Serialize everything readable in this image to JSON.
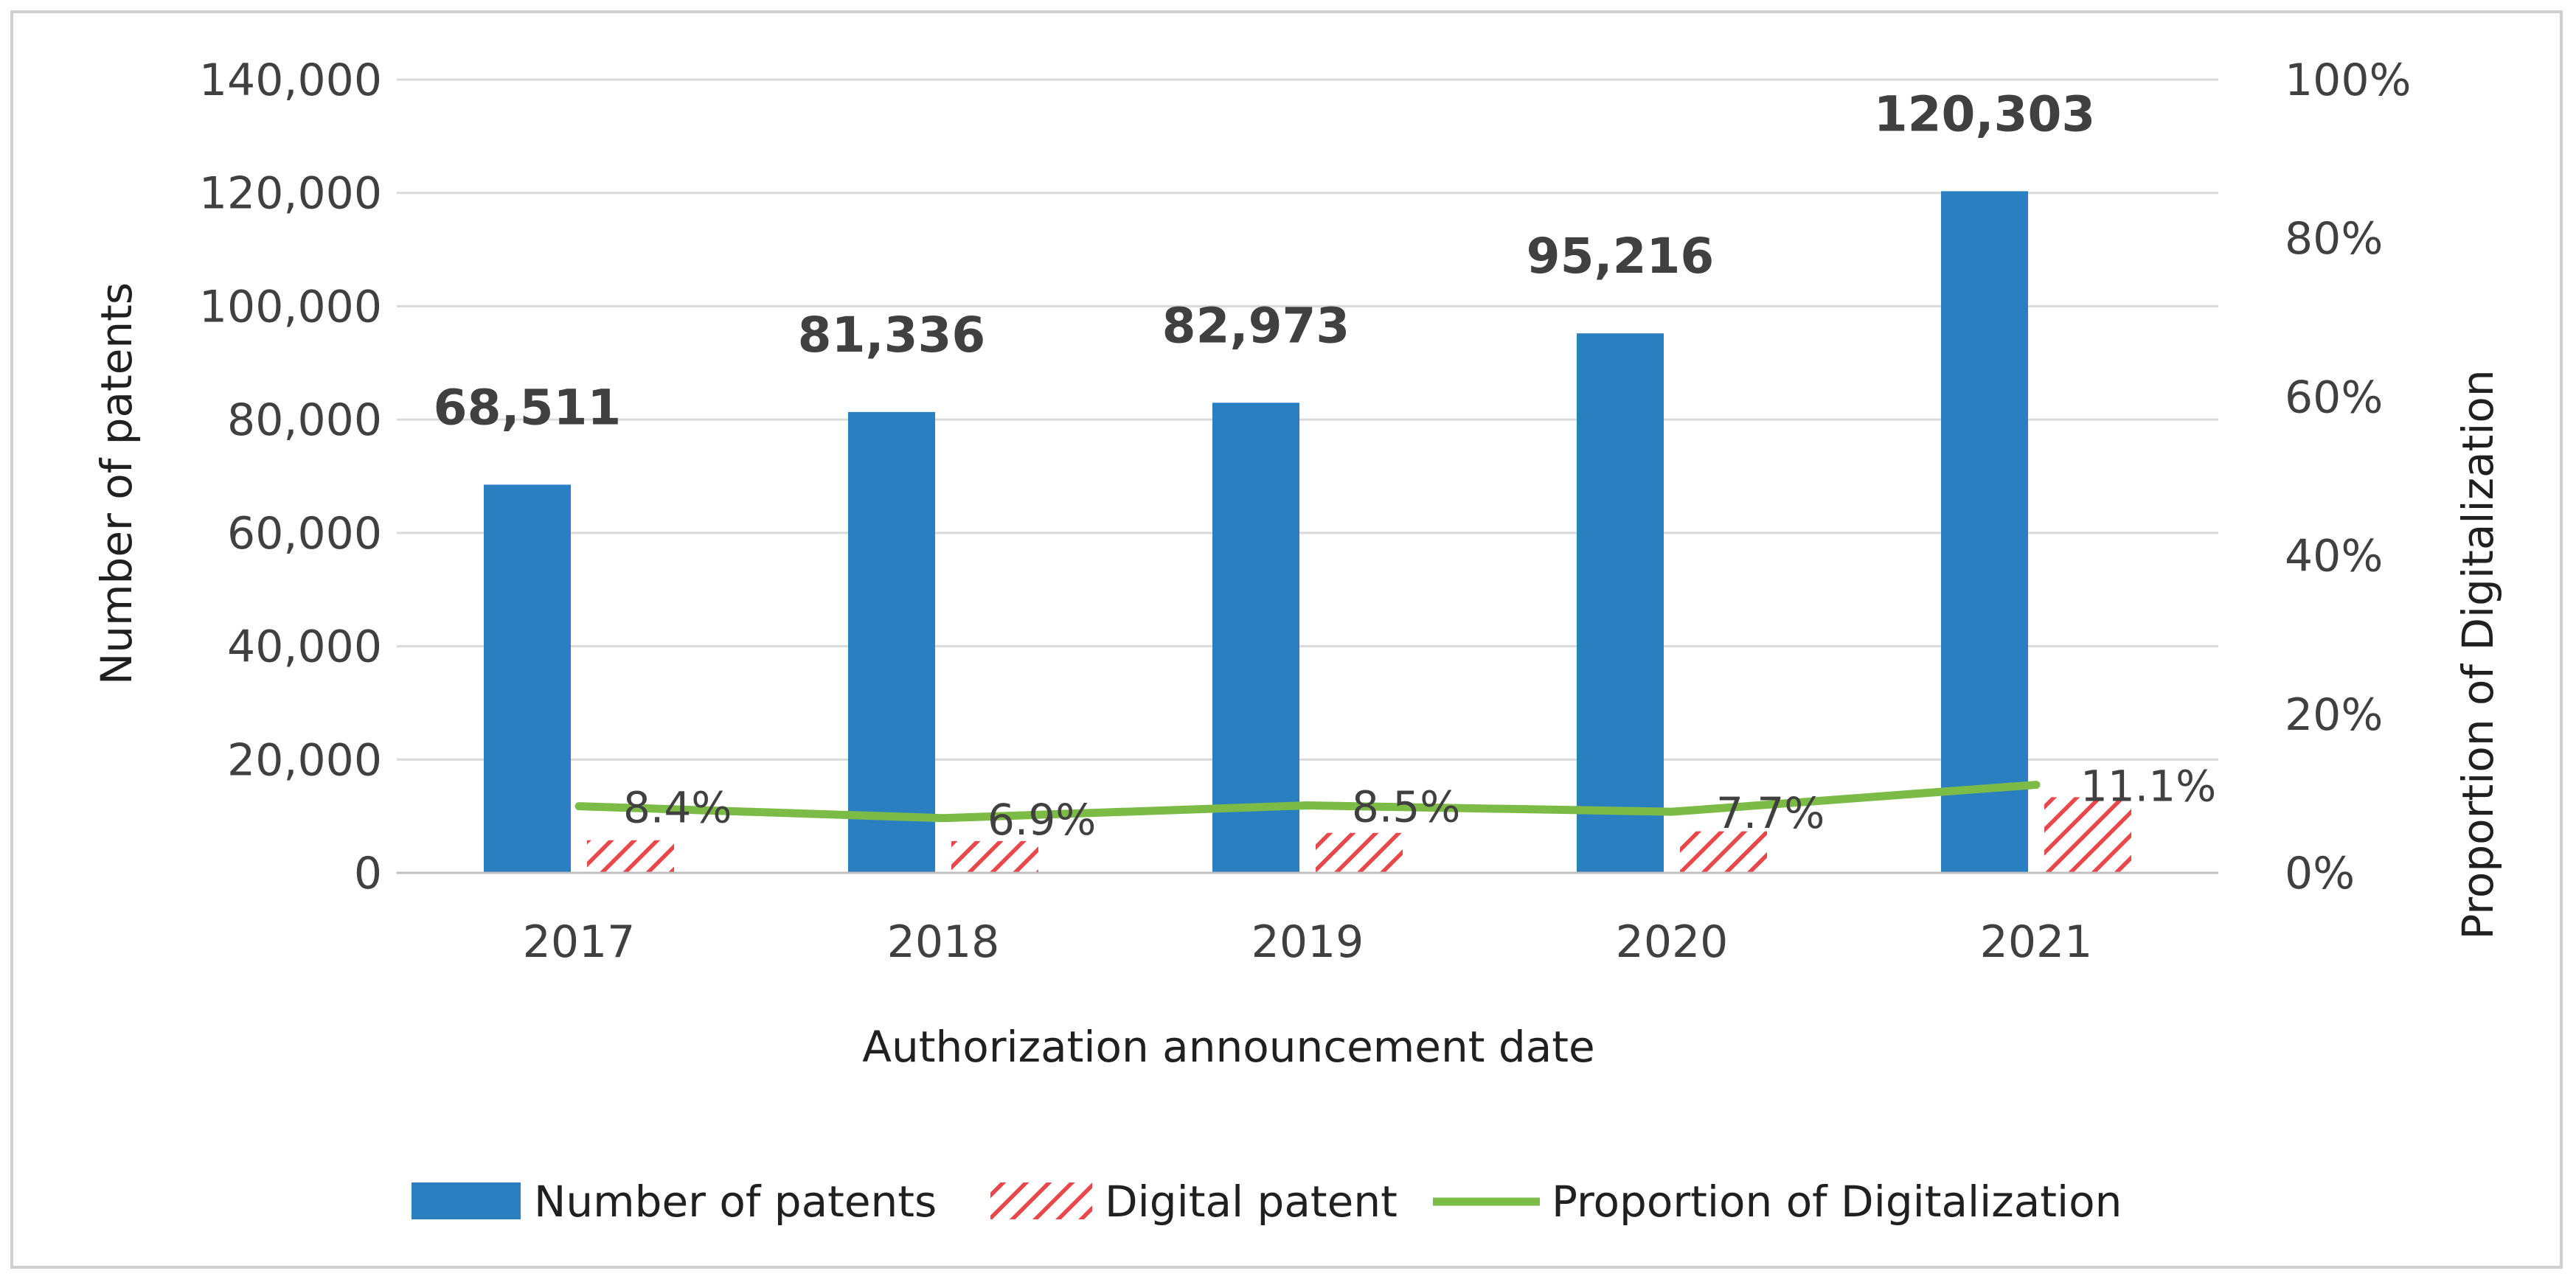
{
  "chart_data": {
    "type": "bar",
    "categories": [
      "2017",
      "2018",
      "2019",
      "2020",
      "2021"
    ],
    "series": [
      {
        "name": "Number of patents",
        "kind": "bar",
        "axis": "left",
        "color": "#2a7fc0",
        "values": [
          68511,
          81336,
          82973,
          95216,
          120303
        ],
        "labels": [
          "68,511",
          "81,336",
          "82,973",
          "95,216",
          "120,303"
        ]
      },
      {
        "name": "Digital patent",
        "kind": "bar-hatched",
        "axis": "left",
        "color": "#e8484a",
        "values": [
          5755,
          5612,
          7053,
          7332,
          13354
        ]
      },
      {
        "name": "Proportion of Digitalization",
        "kind": "line",
        "axis": "right",
        "color": "#7dbb47",
        "values": [
          8.4,
          6.9,
          8.5,
          7.7,
          11.1
        ],
        "labels": [
          "8.4%",
          "6.9%",
          "8.5%",
          "7.7%",
          "11.1%"
        ]
      }
    ],
    "xlabel": "Authorization announcement date",
    "ylabel": "Number of patents",
    "y2label": "Proportion of Digitalization",
    "ylim": [
      0,
      140000
    ],
    "y2lim": [
      0,
      100
    ],
    "yticks": [
      "0",
      "20,000",
      "40,000",
      "60,000",
      "80,000",
      "100,000",
      "120,000",
      "140,000"
    ],
    "y2ticks": [
      "0%",
      "20%",
      "40%",
      "60%",
      "80%",
      "100%"
    ],
    "grid": true,
    "legend": "bottom"
  }
}
